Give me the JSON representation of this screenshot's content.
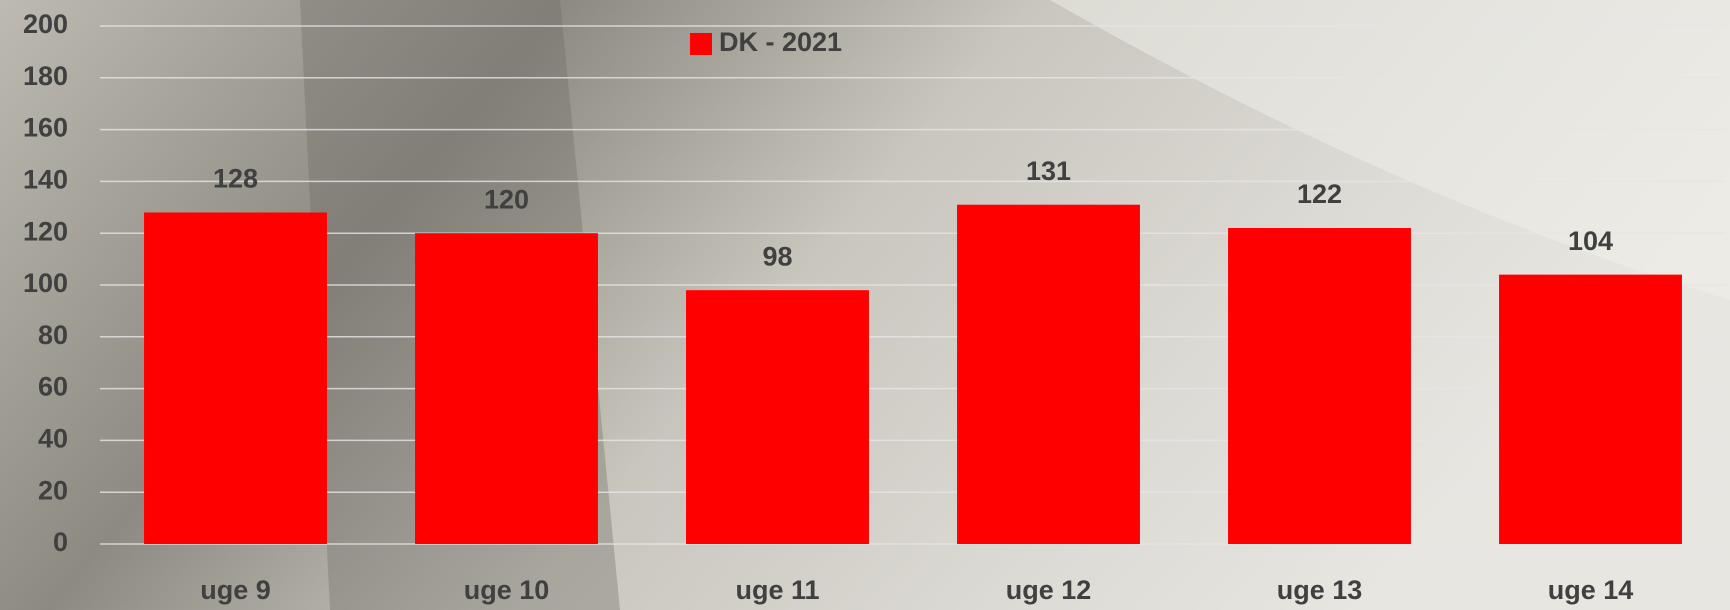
{
  "chart_data": {
    "type": "bar",
    "categories": [
      "uge 9",
      "uge 10",
      "uge 11",
      "uge 12",
      "uge 13",
      "uge 14"
    ],
    "series": [
      {
        "name": "DK - 2021",
        "color": "#ff0000",
        "values": [
          128,
          120,
          98,
          131,
          122,
          104
        ]
      }
    ],
    "ylim": [
      0,
      200
    ],
    "yticks": [
      0,
      20,
      40,
      60,
      80,
      100,
      120,
      140,
      160,
      180,
      200
    ],
    "grid": true,
    "legend": "top"
  }
}
